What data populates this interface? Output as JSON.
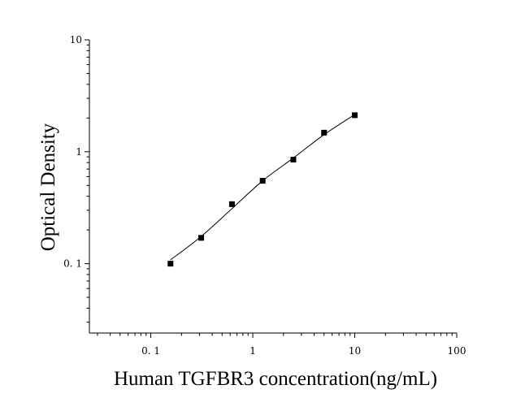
{
  "chart_data": {
    "type": "scatter",
    "title": "",
    "xlabel": "Human TGFBR3 concentration(ng/mL)",
    "ylabel": "Optical Density",
    "x_scale": "log",
    "y_scale": "log",
    "xlim": [
      0.025,
      100
    ],
    "ylim": [
      0.024,
      10
    ],
    "x_ticks": [
      0.1,
      1,
      10,
      100
    ],
    "x_tick_labels": [
      "0. 1",
      "1",
      "10",
      "100"
    ],
    "y_ticks": [
      0.1,
      1,
      10
    ],
    "y_tick_labels": [
      "0. 1",
      "1",
      "10"
    ],
    "grid": false,
    "legend": "none",
    "series": [
      {
        "marker": "square",
        "color": "#000000",
        "x": [
          0.156,
          0.312,
          0.625,
          1.25,
          2.5,
          5,
          10
        ],
        "y": [
          0.1,
          0.17,
          0.34,
          0.55,
          0.85,
          1.48,
          2.12
        ]
      }
    ],
    "fit_curve": {
      "color": "#000000",
      "x": [
        0.156,
        0.312,
        0.625,
        1.25,
        2.5,
        5,
        10
      ],
      "y": [
        0.108,
        0.175,
        0.31,
        0.55,
        0.88,
        1.42,
        2.15
      ]
    }
  }
}
